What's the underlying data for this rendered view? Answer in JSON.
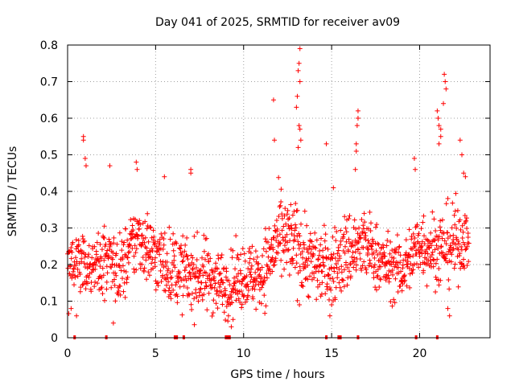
{
  "chart_data": {
    "type": "scatter",
    "title": "Day 041 of 2025, SRMTID for receiver av09",
    "xlabel": "GPS time / hours",
    "ylabel": "SRMTID / TECUs",
    "xlim": [
      0,
      24
    ],
    "ylim": [
      0,
      0.8
    ],
    "xticks": [
      0,
      5,
      10,
      15,
      20
    ],
    "xtick_labels": [
      "0",
      "5",
      "10",
      "15",
      "20"
    ],
    "yticks": [
      0,
      0.1,
      0.2,
      0.3,
      0.4,
      0.5,
      0.6,
      0.7,
      0.8
    ],
    "ytick_labels": [
      "0",
      "0.1",
      "0.2",
      "0.3",
      "0.4",
      "0.5",
      "0.6",
      "0.7",
      "0.8"
    ],
    "grid": true,
    "marker": "+",
    "color": "#ff0000",
    "notable_points": [
      {
        "x": 0.9,
        "y": 0.55
      },
      {
        "x": 0.9,
        "y": 0.54
      },
      {
        "x": 1.0,
        "y": 0.49
      },
      {
        "x": 1.05,
        "y": 0.47
      },
      {
        "x": 2.4,
        "y": 0.47
      },
      {
        "x": 3.9,
        "y": 0.48
      },
      {
        "x": 3.95,
        "y": 0.46
      },
      {
        "x": 5.5,
        "y": 0.44
      },
      {
        "x": 7.0,
        "y": 0.46
      },
      {
        "x": 7.0,
        "y": 0.45
      },
      {
        "x": 11.7,
        "y": 0.65
      },
      {
        "x": 11.75,
        "y": 0.54
      },
      {
        "x": 13.0,
        "y": 0.63
      },
      {
        "x": 13.05,
        "y": 0.66
      },
      {
        "x": 13.1,
        "y": 0.73
      },
      {
        "x": 13.15,
        "y": 0.75
      },
      {
        "x": 13.2,
        "y": 0.79
      },
      {
        "x": 13.2,
        "y": 0.7
      },
      {
        "x": 13.15,
        "y": 0.58
      },
      {
        "x": 13.2,
        "y": 0.57
      },
      {
        "x": 13.1,
        "y": 0.52
      },
      {
        "x": 13.25,
        "y": 0.54
      },
      {
        "x": 14.7,
        "y": 0.53
      },
      {
        "x": 15.1,
        "y": 0.41
      },
      {
        "x": 16.5,
        "y": 0.62
      },
      {
        "x": 16.5,
        "y": 0.6
      },
      {
        "x": 16.45,
        "y": 0.58
      },
      {
        "x": 16.4,
        "y": 0.53
      },
      {
        "x": 16.4,
        "y": 0.51
      },
      {
        "x": 16.35,
        "y": 0.46
      },
      {
        "x": 19.7,
        "y": 0.49
      },
      {
        "x": 19.75,
        "y": 0.46
      },
      {
        "x": 21.0,
        "y": 0.62
      },
      {
        "x": 21.05,
        "y": 0.6
      },
      {
        "x": 21.1,
        "y": 0.58
      },
      {
        "x": 21.2,
        "y": 0.57
      },
      {
        "x": 21.2,
        "y": 0.55
      },
      {
        "x": 21.1,
        "y": 0.53
      },
      {
        "x": 21.4,
        "y": 0.72
      },
      {
        "x": 21.45,
        "y": 0.7
      },
      {
        "x": 21.5,
        "y": 0.68
      },
      {
        "x": 21.35,
        "y": 0.64
      },
      {
        "x": 22.3,
        "y": 0.54
      },
      {
        "x": 22.4,
        "y": 0.5
      },
      {
        "x": 22.5,
        "y": 0.45
      },
      {
        "x": 22.6,
        "y": 0.44
      },
      {
        "x": 0.2,
        "y": 0.08
      },
      {
        "x": 2.6,
        "y": 0.04
      },
      {
        "x": 9.3,
        "y": 0.03
      },
      {
        "x": 9.4,
        "y": 0.05
      },
      {
        "x": 14.9,
        "y": 0.06
      },
      {
        "x": 15.0,
        "y": 0.09
      },
      {
        "x": 21.7,
        "y": 0.06
      },
      {
        "x": 21.6,
        "y": 0.08
      }
    ],
    "envelope": {
      "description": "approximate mean and spread of the dense point cloud by hour",
      "hours": [
        0,
        1,
        2,
        3,
        4,
        5,
        6,
        7,
        8,
        9,
        10,
        11,
        12,
        13,
        14,
        15,
        16,
        17,
        18,
        19,
        20,
        21,
        22,
        23
      ],
      "mean": [
        0.2,
        0.2,
        0.21,
        0.18,
        0.28,
        0.22,
        0.19,
        0.17,
        0.17,
        0.14,
        0.17,
        0.17,
        0.27,
        0.25,
        0.2,
        0.19,
        0.24,
        0.25,
        0.2,
        0.18,
        0.26,
        0.24,
        0.26,
        0.28
      ],
      "spread": [
        0.07,
        0.07,
        0.06,
        0.07,
        0.07,
        0.07,
        0.07,
        0.07,
        0.07,
        0.06,
        0.06,
        0.07,
        0.08,
        0.09,
        0.07,
        0.07,
        0.08,
        0.07,
        0.06,
        0.06,
        0.07,
        0.07,
        0.08,
        0.05
      ],
      "data_end_hour": 22.8
    },
    "zero_markers_x": [
      0.4,
      2.2,
      6.1,
      6.2,
      6.6,
      9.0,
      9.1,
      9.2,
      14.7,
      15.4,
      15.5,
      16.5,
      19.8,
      21.0
    ]
  }
}
